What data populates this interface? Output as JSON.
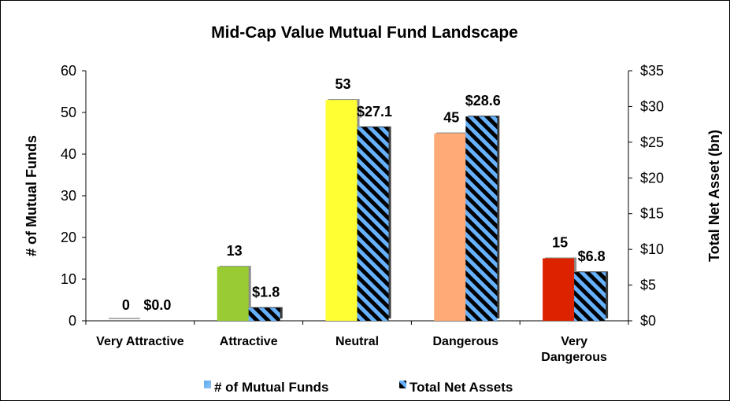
{
  "chart_data": {
    "type": "bar",
    "title": "Mid-Cap Value Mutual Fund Landscape",
    "categories": [
      [
        "Very Attractive"
      ],
      [
        "Attractive"
      ],
      [
        "Neutral"
      ],
      [
        "Dangerous"
      ],
      [
        "Very",
        "Dangerous"
      ]
    ],
    "series": [
      {
        "name": "# of Mutual Funds",
        "axis": "left",
        "values": [
          0,
          13,
          53,
          45,
          15
        ],
        "labels": [
          "0",
          "13",
          "53",
          "45",
          "15"
        ],
        "colors": [
          "#bfbfbf",
          "#99cc33",
          "#ffff33",
          "#ffaa77",
          "#dd2200"
        ]
      },
      {
        "name": "Total Net Assets",
        "axis": "right",
        "values": [
          0.0,
          1.8,
          27.1,
          28.6,
          6.8
        ],
        "labels": [
          "$0.0",
          "$1.8",
          "$27.1",
          "$28.6",
          "$6.8"
        ],
        "fill": "hatched",
        "colors": [
          "#66b2ff",
          "#000000"
        ]
      }
    ],
    "y_left": {
      "label": "# of Mutual Funds",
      "range": [
        0,
        60
      ],
      "ticks": [
        "0",
        "10",
        "20",
        "30",
        "40",
        "50",
        "60"
      ]
    },
    "y_right": {
      "label": "Total Net Asset (bn)",
      "range": [
        0,
        35
      ],
      "ticks": [
        "$0",
        "$5",
        "$10",
        "$15",
        "$20",
        "$25",
        "$30",
        "$35"
      ]
    },
    "legend": {
      "position": "bottom",
      "entries": [
        "# of Mutual Funds",
        "Total Net Assets"
      ]
    },
    "grid": false
  }
}
